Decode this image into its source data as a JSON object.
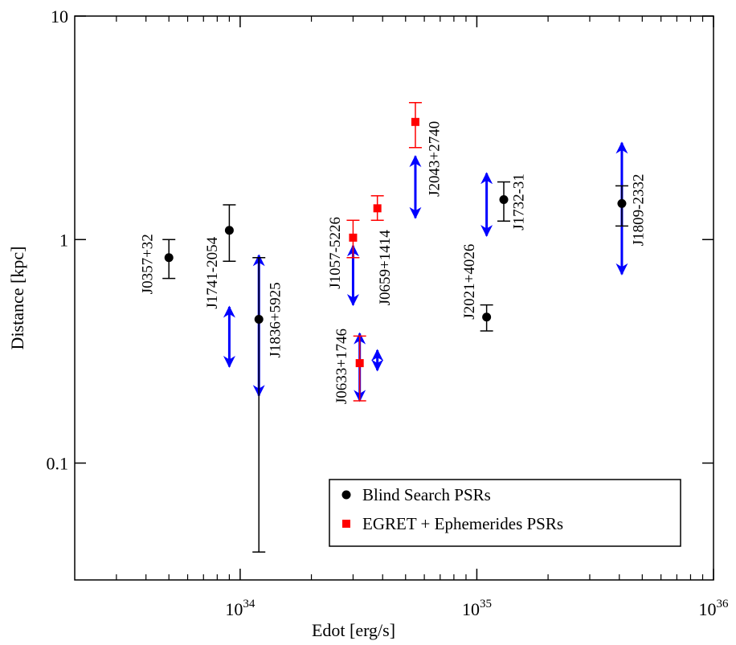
{
  "chart_data": {
    "type": "scatter",
    "xlabel": "Edot [erg/s]",
    "ylabel": "Distance [kpc]",
    "xscale": "log",
    "yscale": "log",
    "xlim": [
      2e+33,
      1e+36
    ],
    "ylim": [
      0.03,
      10
    ],
    "xticks": [
      {
        "value": 1e+34,
        "label": "10",
        "exponent": "34"
      },
      {
        "value": 1e+35,
        "label": "10",
        "exponent": "35"
      },
      {
        "value": 1e+36,
        "label": "10",
        "exponent": "36"
      }
    ],
    "xminorticks": [
      3e+33,
      4e+33,
      5e+33,
      6e+33,
      7e+33,
      8e+33,
      9e+33,
      2e+34,
      3e+34,
      4e+34,
      5e+34,
      6e+34,
      7e+34,
      8e+34,
      9e+34,
      2e+35,
      3e+35,
      4e+35,
      5e+35,
      6e+35,
      7e+35,
      8e+35,
      9e+35
    ],
    "yticks": [
      0.1,
      1,
      10
    ],
    "legend": "lower right",
    "series": [
      {
        "name": "Blind Search PSRs",
        "color": "#000000",
        "marker": "circle",
        "labels": [
          "J0357+32",
          "J1741-2054",
          "J1836+5925",
          "J2021+4026",
          "J1732-31",
          "J1809-2332"
        ],
        "x": [
          5e+33,
          9e+33,
          1.2e+34,
          1.1e+35,
          1.3e+35,
          4.1e+35
        ],
        "y": [
          0.83,
          1.1,
          0.44,
          0.45,
          1.51,
          1.45
        ],
        "ylow": [
          0.67,
          0.8,
          0.04,
          0.39,
          1.21,
          1.15
        ],
        "yhigh": [
          1.0,
          1.43,
          0.83,
          0.51,
          1.81,
          1.74
        ]
      },
      {
        "name": "EGRET + Ephemerides PSRs",
        "color": "#ff0000",
        "marker": "square",
        "labels": [
          "J1057-5226",
          "J0633+1746",
          "J0659+1414",
          "J2043+2740"
        ],
        "x": [
          3e+34,
          3.2e+34,
          3.8e+34,
          5.5e+34
        ],
        "y": [
          1.02,
          0.28,
          1.38,
          3.36
        ],
        "ylow": [
          0.83,
          0.19,
          1.22,
          2.58
        ],
        "yhigh": [
          1.22,
          0.37,
          1.57,
          4.1
        ]
      }
    ],
    "ranges": {
      "color": "#0000ff",
      "x": [
        9e+33,
        1.2e+34,
        3e+34,
        3.2e+34,
        3.8e+34,
        5.5e+34,
        1.1e+35,
        4.1e+35
      ],
      "low": [
        0.27,
        0.2,
        0.51,
        0.19,
        0.26,
        1.25,
        1.04,
        0.7
      ],
      "high": [
        0.5,
        0.85,
        0.94,
        0.38,
        0.32,
        2.36,
        1.98,
        2.71
      ]
    }
  }
}
